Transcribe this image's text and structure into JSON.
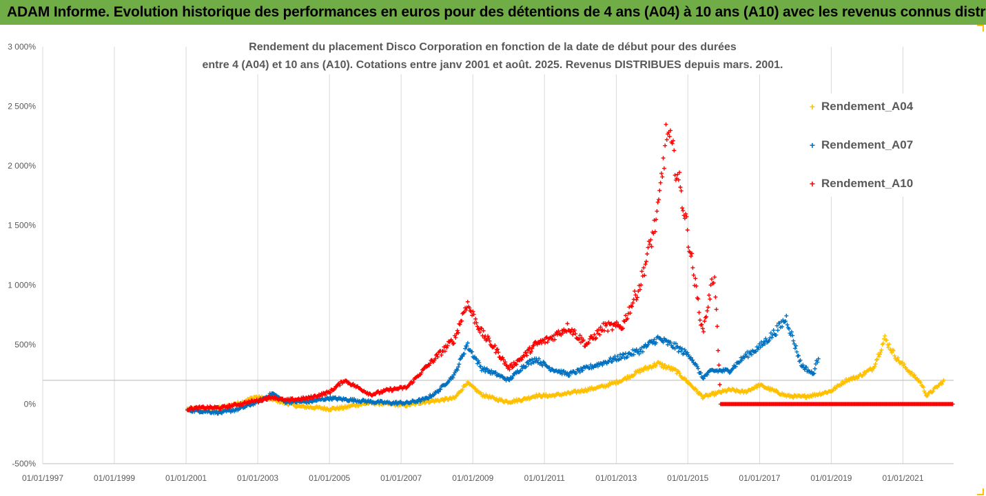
{
  "banner": {
    "title": "ADAM Informe. Evolution historique des performances en euros pour des détentions de 4 ans (A04) à 10 ans (A10) avec les revenus connus distribués"
  },
  "colors": {
    "banner_bg": "#70ad47",
    "A04": "#ffc000",
    "A07": "#0070c0",
    "A10": "#ff0000",
    "grid": "#d9d9d9",
    "text": "#595959"
  },
  "chart_data": {
    "type": "scatter",
    "marker": "plus",
    "title_line1": "Rendement du placement Disco Corporation en fonction de la date de début pour des durées",
    "title_line2": "entre 4 (A04) et 10 ans (A10). Cotations entre janv 2001 et août. 2025. Revenus DISTRIBUES depuis mars. 2001.",
    "xlabel": "",
    "ylabel": "",
    "xlim": [
      "1997-01-01",
      "2022-06-01"
    ],
    "ylim": [
      -500,
      3000
    ],
    "x_ticks": [
      "01/01/1997",
      "01/01/1999",
      "01/01/2001",
      "01/01/2003",
      "01/01/2005",
      "01/01/2007",
      "01/01/2009",
      "01/01/2011",
      "01/01/2013",
      "01/01/2015",
      "01/01/2017",
      "01/01/2019",
      "01/01/2021"
    ],
    "x_tick_dates": [
      "1997-01-01",
      "1999-01-01",
      "2001-01-01",
      "2003-01-01",
      "2005-01-01",
      "2007-01-01",
      "2009-01-01",
      "2011-01-01",
      "2013-01-01",
      "2015-01-01",
      "2017-01-01",
      "2019-01-01",
      "2021-01-01"
    ],
    "y_ticks": [
      -500,
      0,
      500,
      1000,
      1500,
      2000,
      2500,
      3000
    ],
    "y_tick_labels": [
      "-500%",
      "0%",
      "500%",
      "1 000%",
      "1 500%",
      "2 000%",
      "2 500%",
      "3 000%"
    ],
    "reference_line_y": 200,
    "grid": "vertical",
    "legend_position": "right",
    "series": [
      {
        "name": "Rendement_A04",
        "key": "A04",
        "points": [
          [
            "2001-01-15",
            -40
          ],
          [
            "2001-07-01",
            -50
          ],
          [
            "2002-01-01",
            -30
          ],
          [
            "2002-07-01",
            10
          ],
          [
            "2002-12-01",
            60
          ],
          [
            "2003-06-01",
            40
          ],
          [
            "2003-10-01",
            10
          ],
          [
            "2004-03-01",
            -20
          ],
          [
            "2004-09-01",
            -30
          ],
          [
            "2005-01-01",
            -40
          ],
          [
            "2005-06-01",
            -30
          ],
          [
            "2005-09-01",
            -10
          ],
          [
            "2006-03-01",
            10
          ],
          [
            "2006-09-01",
            0
          ],
          [
            "2007-03-01",
            -10
          ],
          [
            "2007-09-01",
            20
          ],
          [
            "2008-01-01",
            30
          ],
          [
            "2008-07-01",
            50
          ],
          [
            "2008-11-01",
            180
          ],
          [
            "2009-04-01",
            80
          ],
          [
            "2009-09-01",
            40
          ],
          [
            "2010-01-01",
            20
          ],
          [
            "2010-06-01",
            40
          ],
          [
            "2010-10-01",
            70
          ],
          [
            "2011-03-01",
            70
          ],
          [
            "2011-09-01",
            90
          ],
          [
            "2012-03-01",
            120
          ],
          [
            "2012-09-01",
            150
          ],
          [
            "2013-03-01",
            200
          ],
          [
            "2013-09-01",
            280
          ],
          [
            "2014-03-01",
            340
          ],
          [
            "2014-09-01",
            280
          ],
          [
            "2015-02-01",
            160
          ],
          [
            "2015-06-01",
            60
          ],
          [
            "2015-09-01",
            80
          ],
          [
            "2016-03-01",
            120
          ],
          [
            "2016-08-01",
            100
          ],
          [
            "2017-01-01",
            160
          ],
          [
            "2017-06-01",
            110
          ],
          [
            "2017-10-01",
            70
          ],
          [
            "2018-03-01",
            60
          ],
          [
            "2018-08-01",
            80
          ],
          [
            "2019-01-01",
            110
          ],
          [
            "2019-06-01",
            200
          ],
          [
            "2019-10-01",
            230
          ],
          [
            "2020-03-01",
            300
          ],
          [
            "2020-07-01",
            550
          ],
          [
            "2020-11-01",
            380
          ],
          [
            "2021-03-01",
            280
          ],
          [
            "2021-07-01",
            180
          ],
          [
            "2021-09-01",
            70
          ],
          [
            "2022-03-01",
            200
          ]
        ]
      },
      {
        "name": "Rendement_A07",
        "key": "A07",
        "points": [
          [
            "2001-01-15",
            -50
          ],
          [
            "2001-07-01",
            -60
          ],
          [
            "2002-01-01",
            -70
          ],
          [
            "2002-07-01",
            -40
          ],
          [
            "2003-01-01",
            20
          ],
          [
            "2003-06-01",
            90
          ],
          [
            "2003-10-01",
            20
          ],
          [
            "2004-06-01",
            20
          ],
          [
            "2005-01-01",
            50
          ],
          [
            "2005-06-01",
            40
          ],
          [
            "2006-03-01",
            20
          ],
          [
            "2006-09-01",
            10
          ],
          [
            "2007-03-01",
            10
          ],
          [
            "2007-09-01",
            40
          ],
          [
            "2008-01-01",
            100
          ],
          [
            "2008-07-01",
            250
          ],
          [
            "2008-11-01",
            500
          ],
          [
            "2009-04-01",
            300
          ],
          [
            "2009-09-01",
            250
          ],
          [
            "2010-01-01",
            200
          ],
          [
            "2010-06-01",
            320
          ],
          [
            "2010-10-01",
            380
          ],
          [
            "2011-03-01",
            300
          ],
          [
            "2011-09-01",
            250
          ],
          [
            "2012-03-01",
            300
          ],
          [
            "2012-09-01",
            350
          ],
          [
            "2013-03-01",
            400
          ],
          [
            "2013-09-01",
            450
          ],
          [
            "2014-03-01",
            550
          ],
          [
            "2014-09-01",
            480
          ],
          [
            "2015-02-01",
            400
          ],
          [
            "2015-06-01",
            220
          ],
          [
            "2015-09-01",
            280
          ],
          [
            "2016-03-01",
            280
          ],
          [
            "2016-08-01",
            400
          ],
          [
            "2017-01-01",
            480
          ],
          [
            "2017-06-01",
            600
          ],
          [
            "2017-10-01",
            720
          ],
          [
            "2018-03-01",
            330
          ],
          [
            "2018-07-01",
            250
          ],
          [
            "2018-09-01",
            420
          ]
        ]
      },
      {
        "name": "Rendement_A10",
        "key": "A10",
        "points": [
          [
            "2001-01-15",
            -40
          ],
          [
            "2001-07-01",
            -30
          ],
          [
            "2002-01-01",
            -30
          ],
          [
            "2002-07-01",
            0
          ],
          [
            "2003-01-01",
            30
          ],
          [
            "2003-06-01",
            60
          ],
          [
            "2003-10-01",
            30
          ],
          [
            "2004-06-01",
            50
          ],
          [
            "2005-01-01",
            100
          ],
          [
            "2005-06-01",
            200
          ],
          [
            "2006-03-01",
            80
          ],
          [
            "2006-09-01",
            120
          ],
          [
            "2007-03-01",
            140
          ],
          [
            "2007-09-01",
            300
          ],
          [
            "2008-01-01",
            400
          ],
          [
            "2008-07-01",
            550
          ],
          [
            "2008-11-01",
            850
          ],
          [
            "2009-04-01",
            600
          ],
          [
            "2009-09-01",
            450
          ],
          [
            "2010-01-01",
            300
          ],
          [
            "2010-06-01",
            400
          ],
          [
            "2010-10-01",
            500
          ],
          [
            "2011-03-01",
            550
          ],
          [
            "2011-09-01",
            650
          ],
          [
            "2012-03-01",
            500
          ],
          [
            "2012-09-01",
            650
          ],
          [
            "2013-03-01",
            650
          ],
          [
            "2013-09-01",
            1000
          ],
          [
            "2014-03-01",
            1600
          ],
          [
            "2014-06-01",
            2300
          ],
          [
            "2014-09-01",
            2000
          ],
          [
            "2014-12-01",
            1600
          ],
          [
            "2015-03-01",
            1100
          ],
          [
            "2015-06-01",
            600
          ],
          [
            "2015-09-01",
            1000
          ],
          [
            "2015-10-01",
            1100
          ],
          [
            "2015-12-01",
            0
          ],
          [
            "2022-06-01",
            0
          ]
        ]
      }
    ]
  },
  "legend": [
    {
      "label": "Rendement_A04",
      "key": "A04"
    },
    {
      "label": "Rendement_A07",
      "key": "A07"
    },
    {
      "label": "Rendement_A10",
      "key": "A10"
    }
  ]
}
